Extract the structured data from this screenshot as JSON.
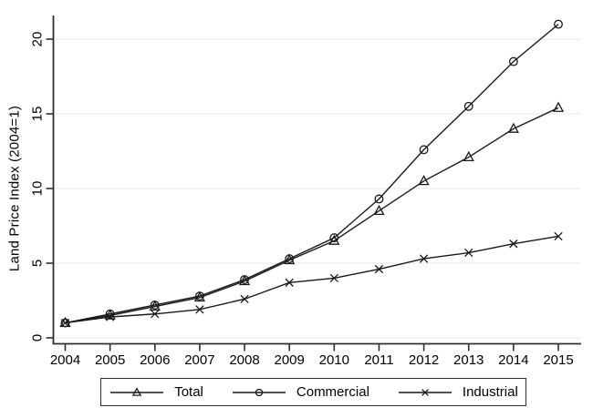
{
  "chart_data": {
    "type": "line",
    "title": "",
    "xlabel": "",
    "ylabel": "Land Price Index (2004=1)",
    "x": [
      "2004",
      "2005",
      "2006",
      "2007",
      "2008",
      "2009",
      "2010",
      "2011",
      "2012",
      "2013",
      "2014",
      "2015"
    ],
    "y_ticks": [
      0,
      5,
      10,
      15,
      20
    ],
    "ylim": [
      0,
      21.6
    ],
    "grid": true,
    "legend_position": "bottom",
    "series": [
      {
        "name": "Total",
        "marker": "triangle",
        "values": [
          1,
          1.5,
          2.1,
          2.7,
          3.8,
          5.2,
          6.5,
          8.5,
          10.5,
          12.1,
          14.0,
          15.4
        ]
      },
      {
        "name": "Commercial",
        "marker": "circle",
        "values": [
          1,
          1.6,
          2.2,
          2.8,
          3.9,
          5.3,
          6.7,
          9.3,
          12.6,
          15.5,
          18.5,
          21.0
        ]
      },
      {
        "name": "Industrial",
        "marker": "x",
        "values": [
          1,
          1.4,
          1.6,
          1.9,
          2.6,
          3.7,
          4.0,
          4.6,
          5.3,
          5.7,
          6.3,
          6.8
        ]
      }
    ],
    "colors": {
      "line": "#1a1a1a",
      "grid": "#e7e7e7",
      "axis": "#303030",
      "text": "#000000",
      "background": "#ffffff"
    }
  }
}
